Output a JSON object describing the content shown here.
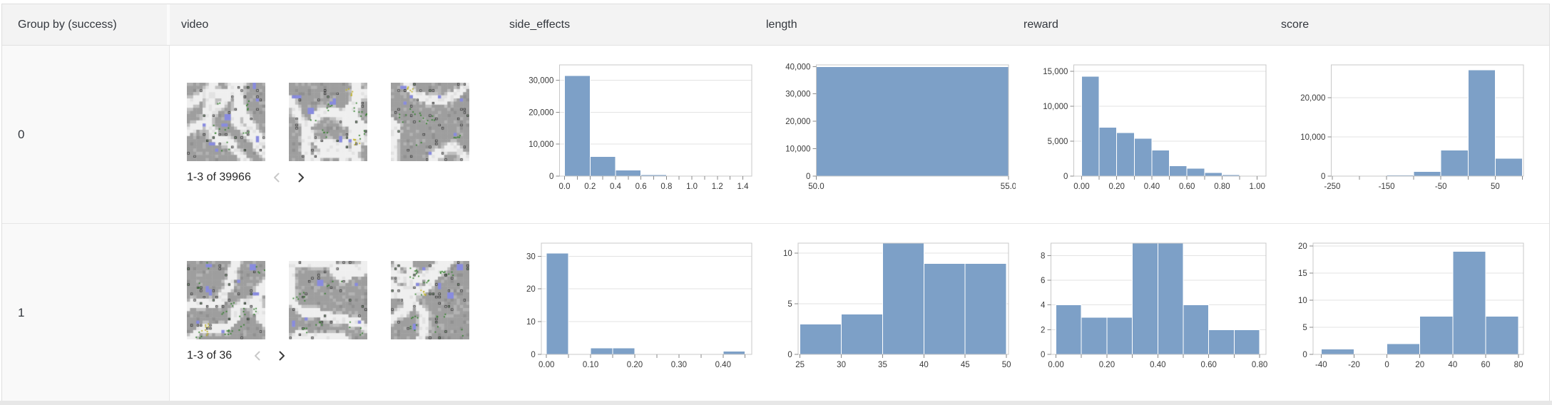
{
  "table": {
    "columns": [
      {
        "id": "group",
        "label": "Group by (success)"
      },
      {
        "id": "video",
        "label": "video"
      },
      {
        "id": "side_effects",
        "label": "side_effects"
      },
      {
        "id": "length",
        "label": "length"
      },
      {
        "id": "reward",
        "label": "reward"
      },
      {
        "id": "score",
        "label": "score"
      }
    ]
  },
  "rows": [
    {
      "group": "0",
      "video": {
        "pagination": "1-3 of 39966",
        "thumbnail_count": 3,
        "prev_enabled": false,
        "next_enabled": true
      }
    },
    {
      "group": "1",
      "video": {
        "pagination": "1-3 of 36",
        "thumbnail_count": 3,
        "prev_enabled": false,
        "next_enabled": true
      }
    }
  ],
  "colors": {
    "bar": "#7da0c7",
    "header_bg": "#f3f3f3",
    "group_column_bg": "#f9f9f9",
    "border": "#dedede",
    "grid": "#e3e3e3",
    "frame": "#c8c8c8",
    "tick_text": "#3a3a3a"
  },
  "chart_data": [
    {
      "row": 0,
      "column": "side_effects",
      "type": "histogram",
      "title": "side_effects",
      "bin_start": 0,
      "bin_width": 0.2,
      "values": [
        31400,
        6100,
        1950,
        400,
        80,
        26,
        10
      ],
      "xlim": [
        -0.04,
        1.47
      ],
      "ylim": [
        0,
        34800
      ],
      "grid": true,
      "xticks": {
        "values": [
          0,
          0.1,
          0.2,
          0.3,
          0.4,
          0.5,
          0.6,
          0.7,
          0.8,
          0.9,
          1.0,
          1.1,
          1.2,
          1.3,
          1.4
        ],
        "labels": [
          "0.0",
          "",
          "0.2",
          "",
          "0.4",
          "",
          "0.6",
          "",
          "0.8",
          "",
          "1.0",
          "",
          "1.2",
          "",
          "1.4"
        ]
      },
      "yticks": {
        "values": [
          0,
          10000,
          20000,
          30000
        ],
        "labels": [
          "0",
          "10,000",
          "20,000",
          "30,000"
        ]
      }
    },
    {
      "row": 0,
      "column": "length",
      "type": "histogram",
      "title": "length",
      "bin_start": 50,
      "bin_width": 5,
      "values": [
        39966
      ],
      "xlim": [
        50,
        55
      ],
      "ylim": [
        0,
        40600
      ],
      "grid": true,
      "xticks": {
        "values": [
          50,
          55
        ],
        "labels": [
          "50.0",
          "55.0"
        ]
      },
      "yticks": {
        "values": [
          0,
          10000,
          20000,
          30000,
          40000
        ],
        "labels": [
          "0",
          "10,000",
          "20,000",
          "30,000",
          "40,000"
        ]
      }
    },
    {
      "row": 0,
      "column": "reward",
      "type": "histogram",
      "title": "reward",
      "bin_start": 0,
      "bin_width": 0.1,
      "values": [
        14266,
        7000,
        6200,
        5400,
        3700,
        1500,
        1100,
        500,
        200,
        100
      ],
      "xlim": [
        -0.045,
        1.05
      ],
      "ylim": [
        0,
        15900
      ],
      "grid": true,
      "xticks": {
        "values": [
          0,
          0.1,
          0.2,
          0.3,
          0.4,
          0.5,
          0.6,
          0.7,
          0.8,
          0.9,
          1.0
        ],
        "labels": [
          "0.00",
          "",
          "0.20",
          "",
          "0.40",
          "",
          "0.60",
          "",
          "0.80",
          "",
          "1.00"
        ]
      },
      "yticks": {
        "values": [
          0,
          5000,
          10000,
          15000
        ],
        "labels": [
          "0",
          "5,000",
          "10,000",
          "15,000"
        ]
      }
    },
    {
      "row": 0,
      "column": "score",
      "type": "histogram",
      "title": "score",
      "bin_start": -250,
      "bin_width": 50,
      "values": [
        120,
        150,
        250,
        1150,
        6600,
        27100,
        4596
      ],
      "xlim": [
        -252,
        102
      ],
      "ylim": [
        0,
        28400
      ],
      "grid": true,
      "xticks": {
        "values": [
          -250,
          -200,
          -150,
          -100,
          -50,
          0,
          50,
          100
        ],
        "labels": [
          "-250",
          "",
          "-150",
          "",
          "-50",
          "",
          "50",
          ""
        ]
      },
      "yticks": {
        "values": [
          0,
          10000,
          20000
        ],
        "labels": [
          "0",
          "10,000",
          "20,000"
        ]
      }
    },
    {
      "row": 1,
      "column": "side_effects",
      "type": "histogram",
      "title": "side_effects",
      "bin_start": 0,
      "bin_width": 0.05,
      "values": [
        31,
        0,
        2,
        2,
        0,
        0,
        0,
        0,
        1
      ],
      "xlim": [
        -0.012,
        0.465
      ],
      "ylim": [
        0,
        34
      ],
      "grid": true,
      "xticks": {
        "values": [
          0,
          0.05,
          0.1,
          0.15,
          0.2,
          0.25,
          0.3,
          0.35,
          0.4,
          0.45
        ],
        "labels": [
          "0.00",
          "",
          "0.10",
          "",
          "0.20",
          "",
          "0.30",
          "",
          "0.40",
          ""
        ]
      },
      "yticks": {
        "values": [
          0,
          10,
          20,
          30
        ],
        "labels": [
          "0",
          "10",
          "20",
          "30"
        ]
      }
    },
    {
      "row": 1,
      "column": "length",
      "type": "histogram",
      "title": "length",
      "bin_start": 25,
      "bin_width": 5,
      "values": [
        3,
        4,
        11,
        9,
        9
      ],
      "xlim": [
        24.75,
        50.25
      ],
      "ylim": [
        0,
        11
      ],
      "grid": true,
      "xticks": {
        "values": [
          25,
          30,
          35,
          40,
          45,
          50
        ],
        "labels": [
          "25",
          "30",
          "35",
          "40",
          "45",
          "50"
        ]
      },
      "yticks": {
        "values": [
          0,
          5,
          10
        ],
        "labels": [
          "0",
          "5",
          "10"
        ]
      }
    },
    {
      "row": 1,
      "column": "reward",
      "type": "histogram",
      "title": "reward",
      "bin_start": 0,
      "bin_width": 0.1,
      "values": [
        4,
        3,
        3,
        9,
        9,
        4,
        2,
        2
      ],
      "xlim": [
        -0.02,
        0.825
      ],
      "ylim": [
        0,
        9
      ],
      "grid": true,
      "xticks": {
        "values": [
          0,
          0.1,
          0.2,
          0.3,
          0.4,
          0.5,
          0.6,
          0.7,
          0.8
        ],
        "labels": [
          "0.00",
          "",
          "0.20",
          "",
          "0.40",
          "",
          "0.60",
          "",
          "0.80"
        ]
      },
      "yticks": {
        "values": [
          0,
          2,
          4,
          6,
          8
        ],
        "labels": [
          "0",
          "2",
          "4",
          "6",
          "8"
        ]
      }
    },
    {
      "row": 1,
      "column": "score",
      "type": "histogram",
      "title": "score",
      "bin_start": -40,
      "bin_width": 20,
      "values": [
        1,
        0,
        2,
        7,
        19,
        7
      ],
      "xlim": [
        -45,
        83
      ],
      "ylim": [
        0,
        20.5
      ],
      "grid": true,
      "xticks": {
        "values": [
          -40,
          -20,
          0,
          20,
          40,
          60,
          80
        ],
        "labels": [
          "-40",
          "-20",
          "0",
          "20",
          "40",
          "60",
          "80"
        ]
      },
      "yticks": {
        "values": [
          0,
          5,
          10,
          15,
          20
        ],
        "labels": [
          "0",
          "5",
          "10",
          "15",
          "20"
        ]
      }
    }
  ]
}
